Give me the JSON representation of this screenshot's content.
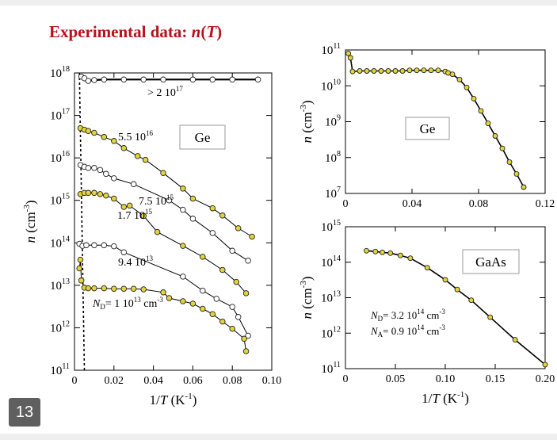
{
  "slide": {
    "title_prefix": "Experimental data:",
    "title_fn": "n",
    "title_open": "(",
    "title_var": "T",
    "title_close": ")",
    "page_number": "13"
  },
  "chart_data": [
    {
      "id": "ge_left",
      "type": "scatter",
      "xlabel": "1/T (K^-1)",
      "ylabel": "n (cm^-3)",
      "xlim": [
        0,
        0.1
      ],
      "ylim_log10": [
        11,
        18
      ],
      "log_y": true,
      "box_label": "Ge",
      "xticks": [
        "0",
        "0.02",
        "0.04",
        "0.06",
        "0.08",
        "0.10"
      ],
      "yticks_exp": [
        "11",
        "12",
        "13",
        "14",
        "15",
        "16",
        "17",
        "18"
      ],
      "colors": {
        "filled": "#e3d43a",
        "open": "#ffffff"
      },
      "series": [
        {
          "name": "> 2 10^17",
          "marker": "open",
          "points": [
            [
              0.0035,
              8.2e+17
            ],
            [
              0.005,
              7.5e+17
            ],
            [
              0.007,
              6.5e+17
            ],
            [
              0.01,
              6.8e+17
            ],
            [
              0.015,
              7e+17
            ],
            [
              0.025,
              7e+17
            ],
            [
              0.035,
              7e+17
            ],
            [
              0.045,
              7e+17
            ],
            [
              0.06,
              7e+17
            ],
            [
              0.07,
              7e+17
            ],
            [
              0.08,
              7e+17
            ],
            [
              0.093,
              7e+17
            ]
          ]
        },
        {
          "name": "5.5 10^16",
          "marker": "filled",
          "points": [
            [
              0.003,
              5e+16
            ],
            [
              0.005,
              4.6e+16
            ],
            [
              0.007,
              4.3e+16
            ],
            [
              0.01,
              3.9e+16
            ],
            [
              0.015,
              3.1e+16
            ],
            [
              0.02,
              2.5e+16
            ],
            [
              0.025,
              1.7e+16
            ],
            [
              0.032,
              1.1e+16
            ],
            [
              0.036,
              9000000000000000.0
            ],
            [
              0.045,
              4400000000000000.0
            ],
            [
              0.055,
              1900000000000000.0
            ],
            [
              0.06,
              1100000000000000.0
            ],
            [
              0.07,
              650000000000000.0
            ],
            [
              0.075,
              440000000000000.0
            ],
            [
              0.083,
              220000000000000.0
            ],
            [
              0.09,
              140000000000000.0
            ]
          ]
        },
        {
          "name": "7.5 10^15",
          "marker": "open",
          "points": [
            [
              0.003,
              6800000000000000.0
            ],
            [
              0.005,
              6200000000000000.0
            ],
            [
              0.007,
              5800000000000000.0
            ],
            [
              0.01,
              5800000000000000.0
            ],
            [
              0.013,
              5200000000000000.0
            ],
            [
              0.016,
              4200000000000000.0
            ],
            [
              0.02,
              3300000000000000.0
            ],
            [
              0.03,
              2400000000000000.0
            ],
            [
              0.048,
              1000000000000000.0
            ],
            [
              0.055,
              600000000000000.0
            ],
            [
              0.06,
              370000000000000.0
            ],
            [
              0.07,
              170000000000000.0
            ],
            [
              0.08,
              65000000000000.0
            ],
            [
              0.088,
              38000000000000.0
            ]
          ]
        },
        {
          "name": "1.7 10^15",
          "marker": "filled",
          "points": [
            [
              0.003,
              1400000000000000.0
            ],
            [
              0.005,
              1500000000000000.0
            ],
            [
              0.007,
              1500000000000000.0
            ],
            [
              0.01,
              1500000000000000.0
            ],
            [
              0.013,
              1400000000000000.0
            ],
            [
              0.016,
              1300000000000000.0
            ],
            [
              0.02,
              1100000000000000.0
            ],
            [
              0.025,
              700000000000000.0
            ],
            [
              0.028,
              750000000000000.0
            ],
            [
              0.035,
              430000000000000.0
            ],
            [
              0.042,
              180000000000000.0
            ],
            [
              0.055,
              85000000000000.0
            ],
            [
              0.065,
              47000000000000.0
            ],
            [
              0.075,
              23000000000000.0
            ],
            [
              0.082,
              12000000000000.0
            ],
            [
              0.087,
              6500000000000.0
            ]
          ]
        },
        {
          "name": "9.4 10^13",
          "marker": "open",
          "points": [
            [
              0.0025,
              95000000000000.0
            ],
            [
              0.004,
              85000000000000.0
            ],
            [
              0.006,
              88000000000000.0
            ],
            [
              0.01,
              88000000000000.0
            ],
            [
              0.015,
              88000000000000.0
            ],
            [
              0.02,
              83000000000000.0
            ],
            [
              0.025,
              60000000000000.0
            ],
            [
              0.055,
              16000000000000.0
            ],
            [
              0.065,
              7500000000000.0
            ],
            [
              0.072,
              4800000000000.0
            ],
            [
              0.08,
              3100000000000.0
            ],
            [
              0.083,
              1800000000000.0
            ],
            [
              0.088,
              650000000000.0
            ]
          ]
        },
        {
          "name": "N_D = 1 10^13 cm^-3",
          "marker": "filled",
          "points": [
            [
              0.0025,
              25000000000000.0
            ],
            [
              0.003,
              40000000000000.0
            ],
            [
              0.0035,
              13000000000000.0
            ],
            [
              0.005,
              8800000000000.0
            ],
            [
              0.007,
              8500000000000.0
            ],
            [
              0.01,
              8500000000000.0
            ],
            [
              0.015,
              8500000000000.0
            ],
            [
              0.02,
              8300000000000.0
            ],
            [
              0.025,
              8300000000000.0
            ],
            [
              0.03,
              8300000000000.0
            ],
            [
              0.035,
              8000000000000.0
            ],
            [
              0.045,
              6800000000000.0
            ],
            [
              0.048,
              5000000000000.0
            ],
            [
              0.055,
              4200000000000.0
            ],
            [
              0.06,
              3700000000000.0
            ],
            [
              0.065,
              2800000000000.0
            ],
            [
              0.07,
              2100000000000.0
            ],
            [
              0.075,
              1400000000000.0
            ],
            [
              0.08,
              950000000000.0
            ],
            [
              0.086,
              550000000000.0
            ],
            [
              0.087,
              280000000000.0
            ]
          ]
        }
      ],
      "annotations": {
        "label_gt": "> 2 10",
        "label_gt_sup": "17",
        "label_55": "5.5 10",
        "label_55_sup": "16",
        "label_75": "7.5 10",
        "label_75_sup": "15",
        "label_17": "1.7 10",
        "label_17_sup": "15",
        "label_94": "9.4 10",
        "label_94_sup": "13",
        "nd_sym": "N",
        "nd_sub": "D",
        "nd_eq": "= 1 10",
        "nd_exp": "13",
        "nd_unit": "cm",
        "nd_unit_sup": "-3"
      }
    },
    {
      "id": "ge_right",
      "type": "scatter",
      "xlabel": "",
      "ylabel": "n (cm^-3)",
      "xlim": [
        0,
        0.14
      ],
      "ylim_log10": [
        7,
        11
      ],
      "log_y": true,
      "box_label": "Ge",
      "xticks": [
        "0",
        "0.04",
        "0.08",
        "0.12"
      ],
      "yticks_exp": [
        "7",
        "8",
        "9",
        "10",
        "11"
      ],
      "x": [
        0.002,
        0.0035,
        0.005,
        0.01,
        0.015,
        0.02,
        0.025,
        0.03,
        0.035,
        0.04,
        0.045,
        0.05,
        0.055,
        0.06,
        0.065,
        0.07,
        0.072,
        0.075,
        0.08,
        0.085,
        0.09,
        0.095,
        0.1,
        0.105,
        0.11,
        0.115,
        0.12,
        0.125
      ],
      "y": [
        80000000000.0,
        60000000000.0,
        25000000000.0,
        26000000000.0,
        26000000000.0,
        26000000000.0,
        26000000000.0,
        26000000000.0,
        26000000000.0,
        26000000000.0,
        27000000000.0,
        27000000000.0,
        27000000000.0,
        27000000000.0,
        27000000000.0,
        25000000000.0,
        23000000000.0,
        21000000000.0,
        15000000000.0,
        9000000000.0,
        4400000000.0,
        2000000000.0,
        900000000.0,
        400000000.0,
        180000000.0,
        75000000.0,
        35000000.0,
        15000000.0
      ]
    },
    {
      "id": "gaas",
      "type": "scatter",
      "xlabel": "1/T (K^-1)",
      "ylabel": "n (cm^-3)",
      "xlim": [
        0,
        0.2
      ],
      "ylim_log10": [
        11,
        15
      ],
      "log_y": true,
      "box_label": "GaAs",
      "xticks": [
        "0",
        "0.05",
        "0.10",
        "0.15",
        "0.20"
      ],
      "yticks_exp": [
        "11",
        "12",
        "13",
        "14",
        "15"
      ],
      "x": [
        0.021,
        0.03,
        0.037,
        0.045,
        0.055,
        0.065,
        0.082,
        0.1,
        0.112,
        0.126,
        0.145,
        0.17,
        0.2
      ],
      "y": [
        210000000000000.0,
        200000000000000.0,
        190000000000000.0,
        180000000000000.0,
        155000000000000.0,
        130000000000000.0,
        70000000000000.0,
        32000000000000.0,
        17000000000000.0,
        8500000000000.0,
        2800000000000.0,
        650000000000.0,
        130000000000.0
      ],
      "annotations": {
        "nd_sym": "N",
        "nd_sub": "D",
        "nd_eq": "= 3.2 10",
        "nd_exp": "14",
        "nd_unit": "cm",
        "nd_unit_sup": "-3",
        "na_sym": "N",
        "na_sub": "A",
        "na_eq": "= 0.9 10",
        "na_exp": "14",
        "na_unit": "cm",
        "na_unit_sup": "-3"
      }
    }
  ]
}
